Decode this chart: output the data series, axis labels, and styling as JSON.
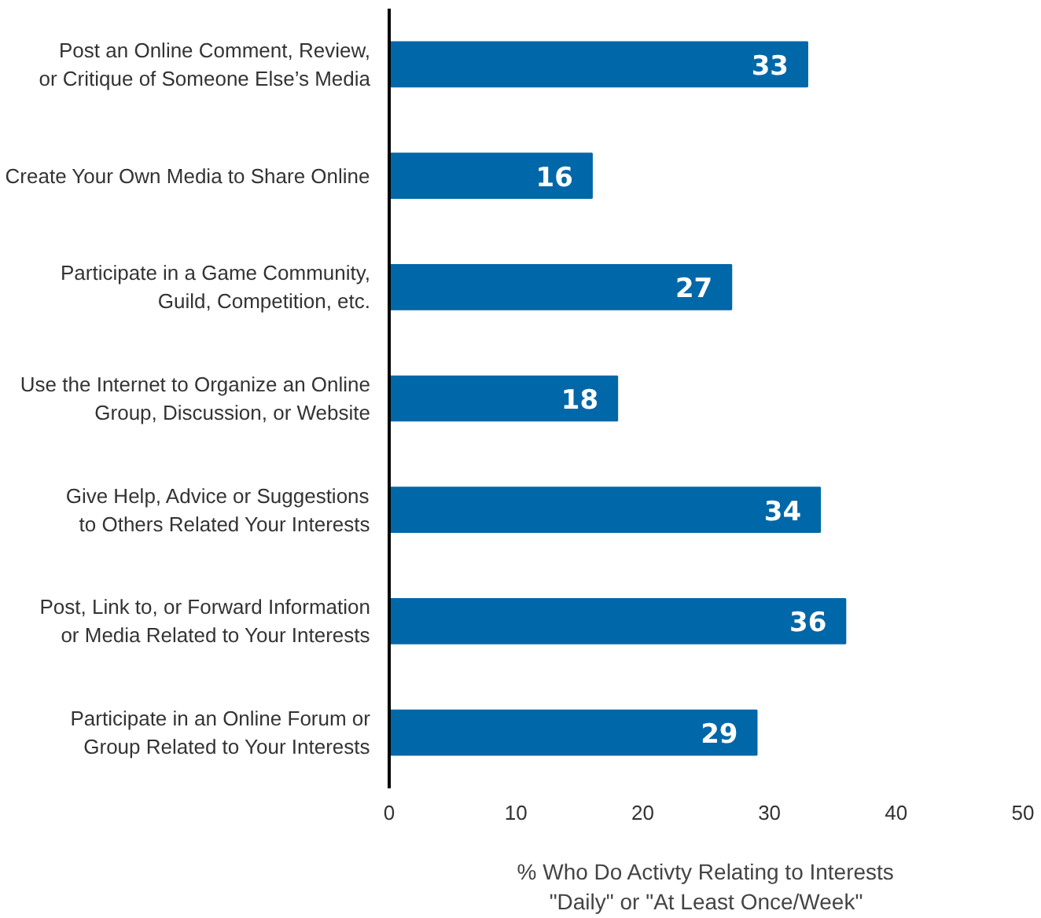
{
  "chart_data": {
    "type": "bar",
    "orientation": "horizontal",
    "xlabel": "% Who Do Activty Relating to Interests\n\"Daily\" or \"At Least Once/Week\"",
    "categories": [
      "Post an Online Comment, Review,\nor Critique of Someone Else’s Media",
      "Create Your Own Media to Share Online",
      "Participate in a Game Community,\nGuild, Competition, etc.",
      "Use the Internet to Organize an Online\nGroup, Discussion, or Website",
      "Give Help, Advice or Suggestions\nto Others Related Your Interests",
      "Post, Link to, or Forward Information\nor Media Related to Your Interests",
      "Participate in an Online Forum or\nGroup Related to Your Interests"
    ],
    "values": [
      33,
      16,
      27,
      18,
      34,
      36,
      29
    ],
    "color": "#0067a8",
    "xlim": [
      0,
      50
    ],
    "xticks": [
      0,
      10,
      20,
      30,
      40,
      50
    ],
    "grid": false,
    "data_labels": true
  }
}
